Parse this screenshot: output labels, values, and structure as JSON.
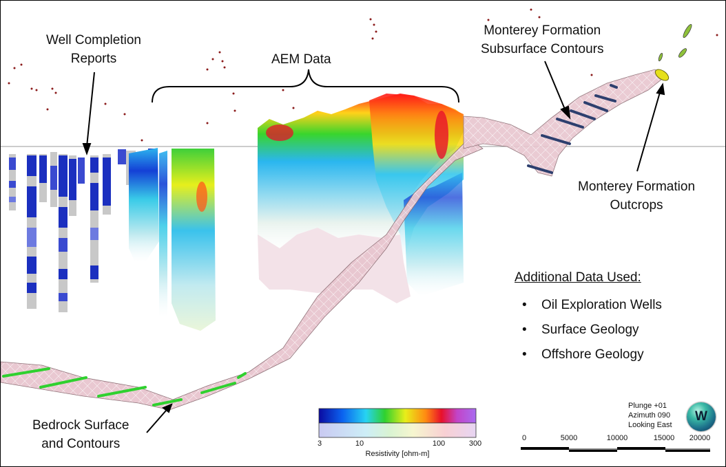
{
  "labels": {
    "well_reports": "Well Completion\nReports",
    "aem_data": "AEM Data",
    "monterey_contours": "Monterey Formation\nSubsurface Contours",
    "monterey_outcrops": "Monterey Formation\nOutcrops",
    "bedrock": "Bedrock Surface\nand Contours"
  },
  "additional": {
    "title": "Additional Data Used:",
    "bullet": "•",
    "items": [
      "Oil Exploration Wells",
      "Surface Geology",
      "Offshore Geology"
    ]
  },
  "orientation": {
    "plunge": "Plunge +01",
    "azimuth": "Azimuth 090",
    "looking": "Looking East",
    "compass_letter": "W"
  },
  "scale_bar": {
    "ticks": [
      "0",
      "5000",
      "10000",
      "15000",
      "20000"
    ]
  },
  "legend": {
    "title": "Resistivity [ohm-m]",
    "ticks": [
      "3",
      "10",
      "100",
      "300"
    ],
    "log_scale": true,
    "range": [
      3,
      300
    ]
  },
  "colors": {
    "well_blue": "#1b2fbf",
    "well_grey": "#c8c8c8",
    "bedrock_fill": "#e9c7d0",
    "bedrock_contour": "#2fd12f",
    "monterey_contour": "#2d3f6e",
    "outcrop": "#e6e01a",
    "dots": "#8b1a1a"
  }
}
